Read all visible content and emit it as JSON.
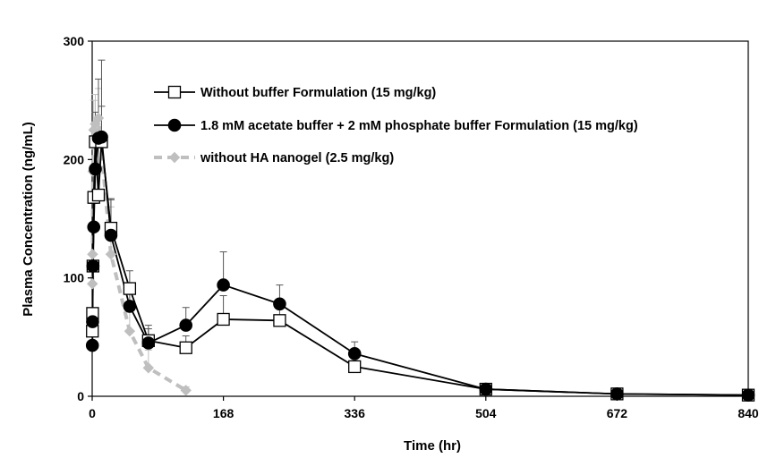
{
  "chart_data": {
    "type": "line",
    "xlabel": "Time (hr)",
    "ylabel": "Plasma Concentration (ng/mL)",
    "xlim": [
      0,
      840
    ],
    "ylim": [
      0,
      300
    ],
    "xticks": [
      0,
      168,
      336,
      504,
      672,
      840
    ],
    "yticks": [
      0,
      100,
      200,
      300
    ],
    "grid": false,
    "legend_position": "top-center",
    "series": [
      {
        "name": "Without buffer Formulation (15 mg/kg)",
        "marker": "open-square",
        "color": "#000000",
        "line": "solid",
        "x": [
          0.25,
          0.5,
          1,
          2,
          4,
          8,
          12,
          24,
          48,
          72,
          120,
          168,
          240,
          336,
          504,
          672,
          840
        ],
        "y": [
          55,
          70,
          110,
          168,
          215,
          170,
          215,
          142,
          91,
          47,
          41,
          65,
          64,
          25,
          6,
          2,
          1
        ],
        "error": [
          0,
          0,
          0,
          20,
          25,
          40,
          30,
          25,
          15,
          10,
          10,
          20,
          10,
          5,
          2,
          1,
          1
        ]
      },
      {
        "name": "1.8 mM acetate buffer + 2 mM phosphate buffer Formulation (15 mg/kg)",
        "marker": "filled-circle",
        "color": "#000000",
        "line": "solid",
        "x": [
          0.25,
          0.5,
          1,
          2,
          4,
          8,
          12,
          24,
          48,
          72,
          120,
          168,
          240,
          336,
          504,
          672,
          840
        ],
        "y": [
          43,
          63,
          110,
          143,
          192,
          218,
          219,
          136,
          76,
          45,
          60,
          94,
          78,
          36,
          6,
          2,
          1
        ],
        "error": [
          0,
          0,
          10,
          20,
          40,
          50,
          65,
          30,
          20,
          15,
          15,
          28,
          16,
          10,
          2,
          1,
          1
        ]
      },
      {
        "name": "without HA nanogel (2.5 mg/kg)",
        "marker": "filled-diamond",
        "color": "#bfbfbf",
        "line": "dashed",
        "x": [
          0.25,
          0.5,
          1,
          2,
          4,
          8,
          24,
          48,
          72,
          120
        ],
        "y": [
          95,
          120,
          190,
          225,
          230,
          235,
          120,
          55,
          24,
          5
        ],
        "error": [
          0,
          0,
          20,
          25,
          25,
          25,
          40,
          20,
          15,
          3
        ]
      }
    ]
  }
}
